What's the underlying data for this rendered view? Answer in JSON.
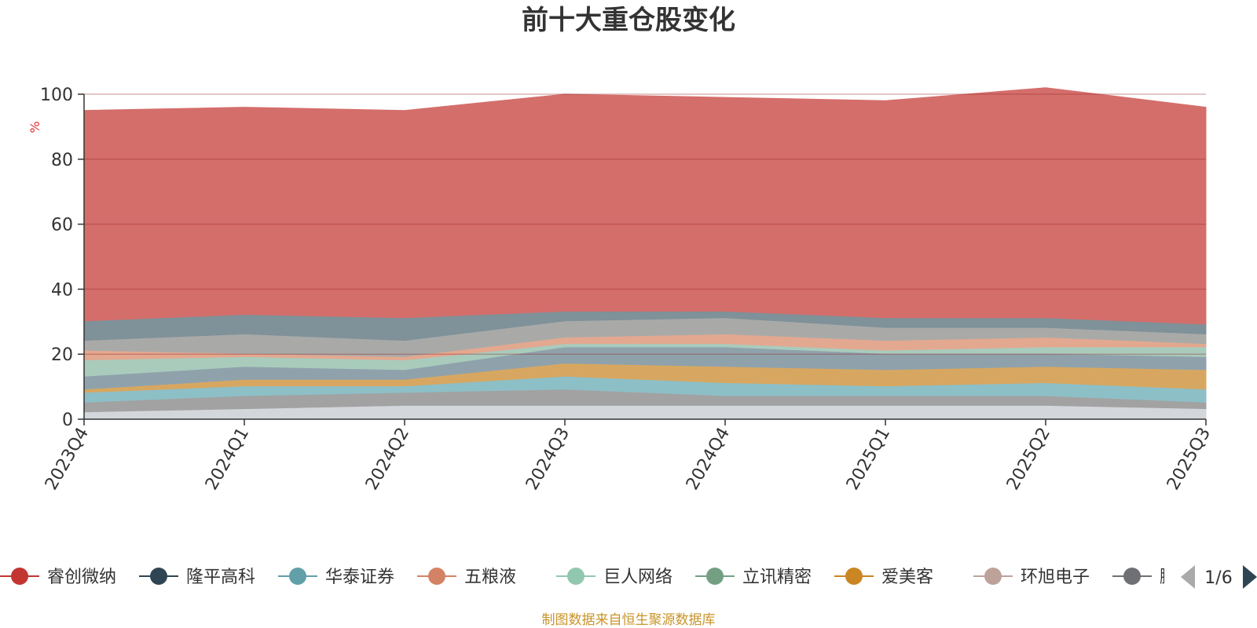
{
  "chart_data": {
    "type": "area",
    "title": "前十大重仓股变化",
    "ylabel": "%",
    "ylim": [
      0,
      100
    ],
    "yticks": [
      0,
      20,
      40,
      60,
      80,
      100
    ],
    "grid": true,
    "categories": [
      "2023Q4",
      "2024Q1",
      "2024Q2",
      "2024Q3",
      "2024Q4",
      "2025Q1",
      "2025Q2",
      "2025Q3"
    ],
    "series": [
      {
        "name": "睿创微纳",
        "color": "#d46e6b",
        "values": [
          65,
          64,
          64,
          67,
          66,
          67,
          71,
          67
        ]
      },
      {
        "name": "",
        "color": "#7f9199",
        "values": [
          6,
          6,
          7,
          3,
          2,
          3,
          3,
          3
        ]
      },
      {
        "name": "",
        "color": "#a9aaa8",
        "values": [
          3,
          6,
          5,
          5,
          5,
          4,
          3,
          3
        ]
      },
      {
        "name": "",
        "color": "#e3a890",
        "values": [
          3,
          1,
          1,
          2,
          3,
          3,
          3,
          1
        ]
      },
      {
        "name": "",
        "color": "#a9cbbc",
        "values": [
          5,
          3,
          3,
          1,
          1,
          1,
          2,
          3
        ]
      },
      {
        "name": "",
        "color": "#8fa2ac",
        "values": [
          4,
          4,
          3,
          5,
          6,
          5,
          4,
          4
        ]
      },
      {
        "name": "",
        "color": "#d7a761",
        "values": [
          1,
          2,
          2,
          4,
          5,
          5,
          5,
          6
        ]
      },
      {
        "name": "",
        "color": "#8dbfc7",
        "values": [
          3,
          3,
          2,
          4,
          4,
          3,
          4,
          4
        ]
      },
      {
        "name": "",
        "color": "#a2a2a2",
        "values": [
          3,
          4,
          4,
          5,
          3,
          3,
          3,
          2
        ]
      },
      {
        "name": "",
        "color": "#d3d6db",
        "values": [
          2,
          3,
          4,
          4,
          4,
          4,
          4,
          3
        ]
      }
    ],
    "colors_remainder": [
      "#dd8a82",
      "#7d949c",
      "#a6d4c3",
      "#b3b5b5",
      "#e2b27c",
      "#c9b3aa",
      "#808a92",
      "#d97a76",
      "#9cb8bd",
      "#c2c4c6"
    ]
  },
  "legend": {
    "items": [
      {
        "label": "睿创微纳",
        "color": "#c23531"
      },
      {
        "label": "隆平高科",
        "color": "#2f4554"
      },
      {
        "label": "华泰证券",
        "color": "#61a0a8"
      },
      {
        "label": "五粮液",
        "color": "#d48265"
      },
      {
        "label": "巨人网络",
        "color": "#91c7ae"
      },
      {
        "label": "立讯精密",
        "color": "#749f83"
      },
      {
        "label": "爱美客",
        "color": "#ca8622"
      },
      {
        "label": "环旭电子",
        "color": "#bda29a"
      },
      {
        "label": "鹏鼎控",
        "color": "#6e7074"
      }
    ],
    "page": "1/6"
  },
  "source": "制图数据来自恒生聚源数据库"
}
